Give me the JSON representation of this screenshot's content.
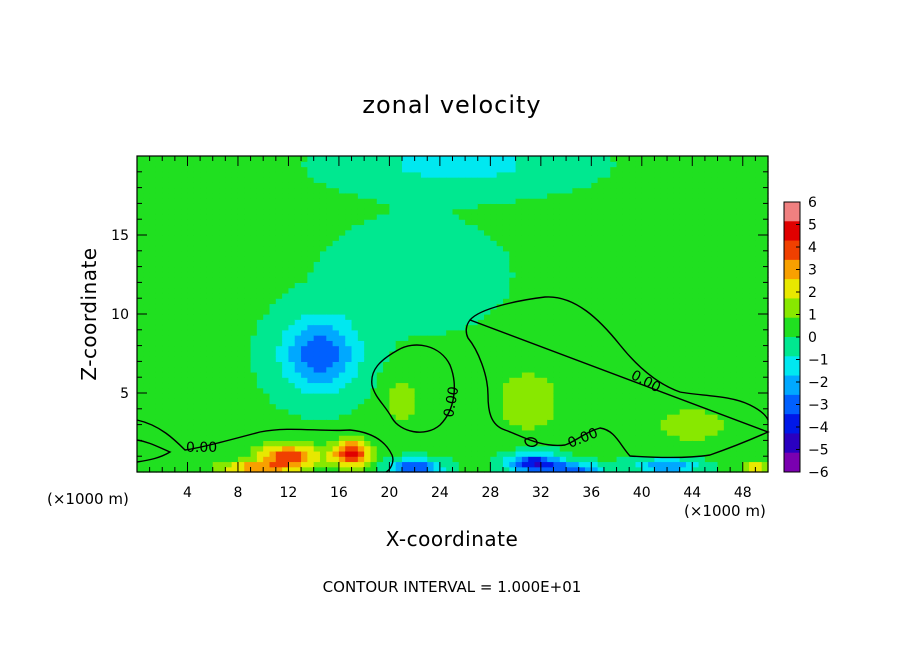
{
  "chart_data": {
    "type": "heatmap",
    "title": "zonal velocity",
    "xlabel": "X-coordinate",
    "ylabel": "Z-coordinate",
    "x_unit_label": "(×1000 m)",
    "x_unit_label_right": "(×1000 m)",
    "xlim": [
      0,
      50
    ],
    "ylim": [
      0,
      20
    ],
    "x_ticks": [
      4,
      8,
      12,
      16,
      20,
      24,
      28,
      32,
      36,
      40,
      44,
      48
    ],
    "y_ticks": [
      5,
      10,
      15
    ],
    "colorbar": {
      "ticks": [
        6,
        5,
        4,
        3,
        2,
        1,
        0,
        -1,
        -2,
        -3,
        -4,
        -5,
        -6
      ],
      "range": [
        -6,
        6
      ]
    },
    "contour_level": "0.00",
    "contour_labels": [
      "0.00",
      "0.00",
      "0.00",
      "0.00"
    ],
    "footnote": "CONTOUR INTERVAL = 1.000E+01",
    "features": [
      {
        "x": 14.5,
        "z": 7.5,
        "value": -4.0,
        "rx": 3.0,
        "rz": 2.3
      },
      {
        "x": 25.5,
        "z": 19.5,
        "value": -1.6,
        "rx": 8.0,
        "rz": 1.6
      },
      {
        "x": 21.0,
        "z": 4.5,
        "value": 1.5,
        "rx": 1.5,
        "rz": 1.5
      },
      {
        "x": 31.0,
        "z": 4.5,
        "value": 1.8,
        "rx": 2.5,
        "rz": 2.0
      },
      {
        "x": 44.0,
        "z": 3.0,
        "value": 1.2,
        "rx": 4.0,
        "rz": 1.5
      },
      {
        "x": 12.0,
        "z": 1.0,
        "value": 4.5,
        "rx": 2.5,
        "rz": 0.8
      },
      {
        "x": 17.0,
        "z": 1.2,
        "value": 5.0,
        "rx": 1.5,
        "rz": 0.9
      },
      {
        "x": 9.0,
        "z": 0.3,
        "value": 3.0,
        "rx": 3.0,
        "rz": 0.4
      },
      {
        "x": 22.0,
        "z": 0.3,
        "value": -4.5,
        "rx": 2.0,
        "rz": 0.5
      },
      {
        "x": 31.5,
        "z": 0.6,
        "value": -5.0,
        "rx": 2.0,
        "rz": 0.6
      },
      {
        "x": 34.5,
        "z": 0.2,
        "value": -3.5,
        "rx": 2.5,
        "rz": 0.4
      },
      {
        "x": 42.0,
        "z": 0.4,
        "value": -3.0,
        "rx": 2.5,
        "rz": 0.5
      },
      {
        "x": 49.0,
        "z": 0.3,
        "value": 2.5,
        "rx": 1.2,
        "rz": 0.4
      },
      {
        "x": 22.0,
        "z": 12.5,
        "value": -0.8,
        "rx": 6.0,
        "rz": 3.0
      },
      {
        "x": 3.0,
        "z": 14.0,
        "value": 0.3,
        "rx": 4.0,
        "rz": 4.0
      }
    ],
    "grid": false,
    "legend": "colorbar-right"
  }
}
